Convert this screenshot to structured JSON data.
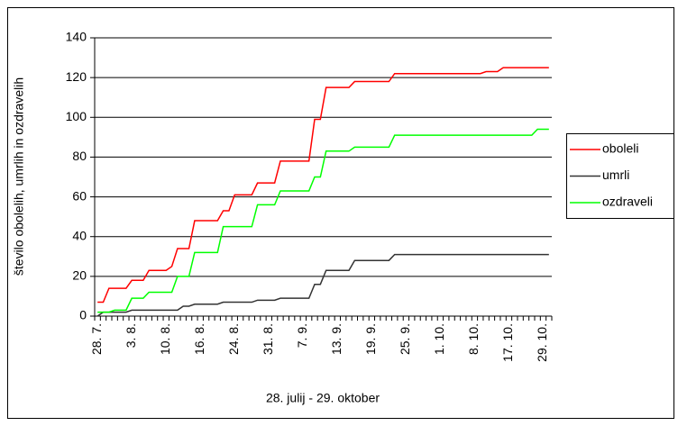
{
  "chart_data": {
    "type": "line",
    "y_label": "število obolelih, umrlih in ozdravelih",
    "x_label": "28. julij - 29. oktober",
    "categories": [
      "28. 7.",
      null,
      null,
      null,
      null,
      null,
      "3. 8.",
      null,
      null,
      null,
      null,
      null,
      "10. 8.",
      null,
      null,
      null,
      null,
      null,
      "16. 8.",
      null,
      null,
      null,
      null,
      null,
      "24. 8.",
      null,
      null,
      null,
      null,
      null,
      "31. 8.",
      null,
      null,
      null,
      null,
      null,
      "7. 9.",
      null,
      null,
      null,
      null,
      null,
      "13. 9.",
      null,
      null,
      null,
      null,
      null,
      "19. 9.",
      null,
      null,
      null,
      null,
      null,
      "25. 9.",
      null,
      null,
      null,
      null,
      null,
      "1. 10.",
      null,
      null,
      null,
      null,
      null,
      "8. 10.",
      null,
      null,
      null,
      null,
      null,
      "17. 10.",
      null,
      null,
      null,
      null,
      null,
      "29. 10.",
      null
    ],
    "series": [
      {
        "name": "oboleli",
        "color": "#ff0000",
        "values": [
          7,
          7,
          14,
          14,
          14,
          14,
          18,
          18,
          18,
          23,
          23,
          23,
          23,
          25,
          34,
          34,
          34,
          48,
          48,
          48,
          48,
          48,
          53,
          53,
          61,
          61,
          61,
          61,
          67,
          67,
          67,
          67,
          78,
          78,
          78,
          78,
          78,
          78,
          99,
          99,
          115,
          115,
          115,
          115,
          115,
          118,
          118,
          118,
          118,
          118,
          118,
          118,
          122,
          122,
          122,
          122,
          122,
          122,
          122,
          122,
          122,
          122,
          122,
          122,
          122,
          122,
          122,
          122,
          123,
          123,
          123,
          125,
          125,
          125,
          125,
          125,
          125,
          125,
          125,
          125
        ]
      },
      {
        "name": "umrli",
        "color": "#333333",
        "values": [
          0,
          2,
          2,
          2,
          2,
          2,
          3,
          3,
          3,
          3,
          3,
          3,
          3,
          3,
          3,
          5,
          5,
          6,
          6,
          6,
          6,
          6,
          7,
          7,
          7,
          7,
          7,
          7,
          8,
          8,
          8,
          8,
          9,
          9,
          9,
          9,
          9,
          9,
          16,
          16,
          23,
          23,
          23,
          23,
          23,
          28,
          28,
          28,
          28,
          28,
          28,
          28,
          31,
          31,
          31,
          31,
          31,
          31,
          31,
          31,
          31,
          31,
          31,
          31,
          31,
          31,
          31,
          31,
          31,
          31,
          31,
          31,
          31,
          31,
          31,
          31,
          31,
          31,
          31,
          31
        ]
      },
      {
        "name": "ozdraveli",
        "color": "#00ff00",
        "values": [
          2,
          2,
          2,
          3,
          3,
          3,
          9,
          9,
          9,
          12,
          12,
          12,
          12,
          12,
          20,
          20,
          20,
          32,
          32,
          32,
          32,
          32,
          45,
          45,
          45,
          45,
          45,
          45,
          56,
          56,
          56,
          56,
          63,
          63,
          63,
          63,
          63,
          63,
          70,
          70,
          83,
          83,
          83,
          83,
          83,
          85,
          85,
          85,
          85,
          85,
          85,
          85,
          91,
          91,
          91,
          91,
          91,
          91,
          91,
          91,
          91,
          91,
          91,
          91,
          91,
          91,
          91,
          91,
          91,
          91,
          91,
          91,
          91,
          91,
          91,
          91,
          91,
          94,
          94,
          94
        ]
      }
    ],
    "ylim": [
      0,
      140
    ],
    "yticks": [
      0,
      20,
      40,
      60,
      80,
      100,
      120,
      140
    ],
    "grid": true,
    "legend": "right"
  }
}
